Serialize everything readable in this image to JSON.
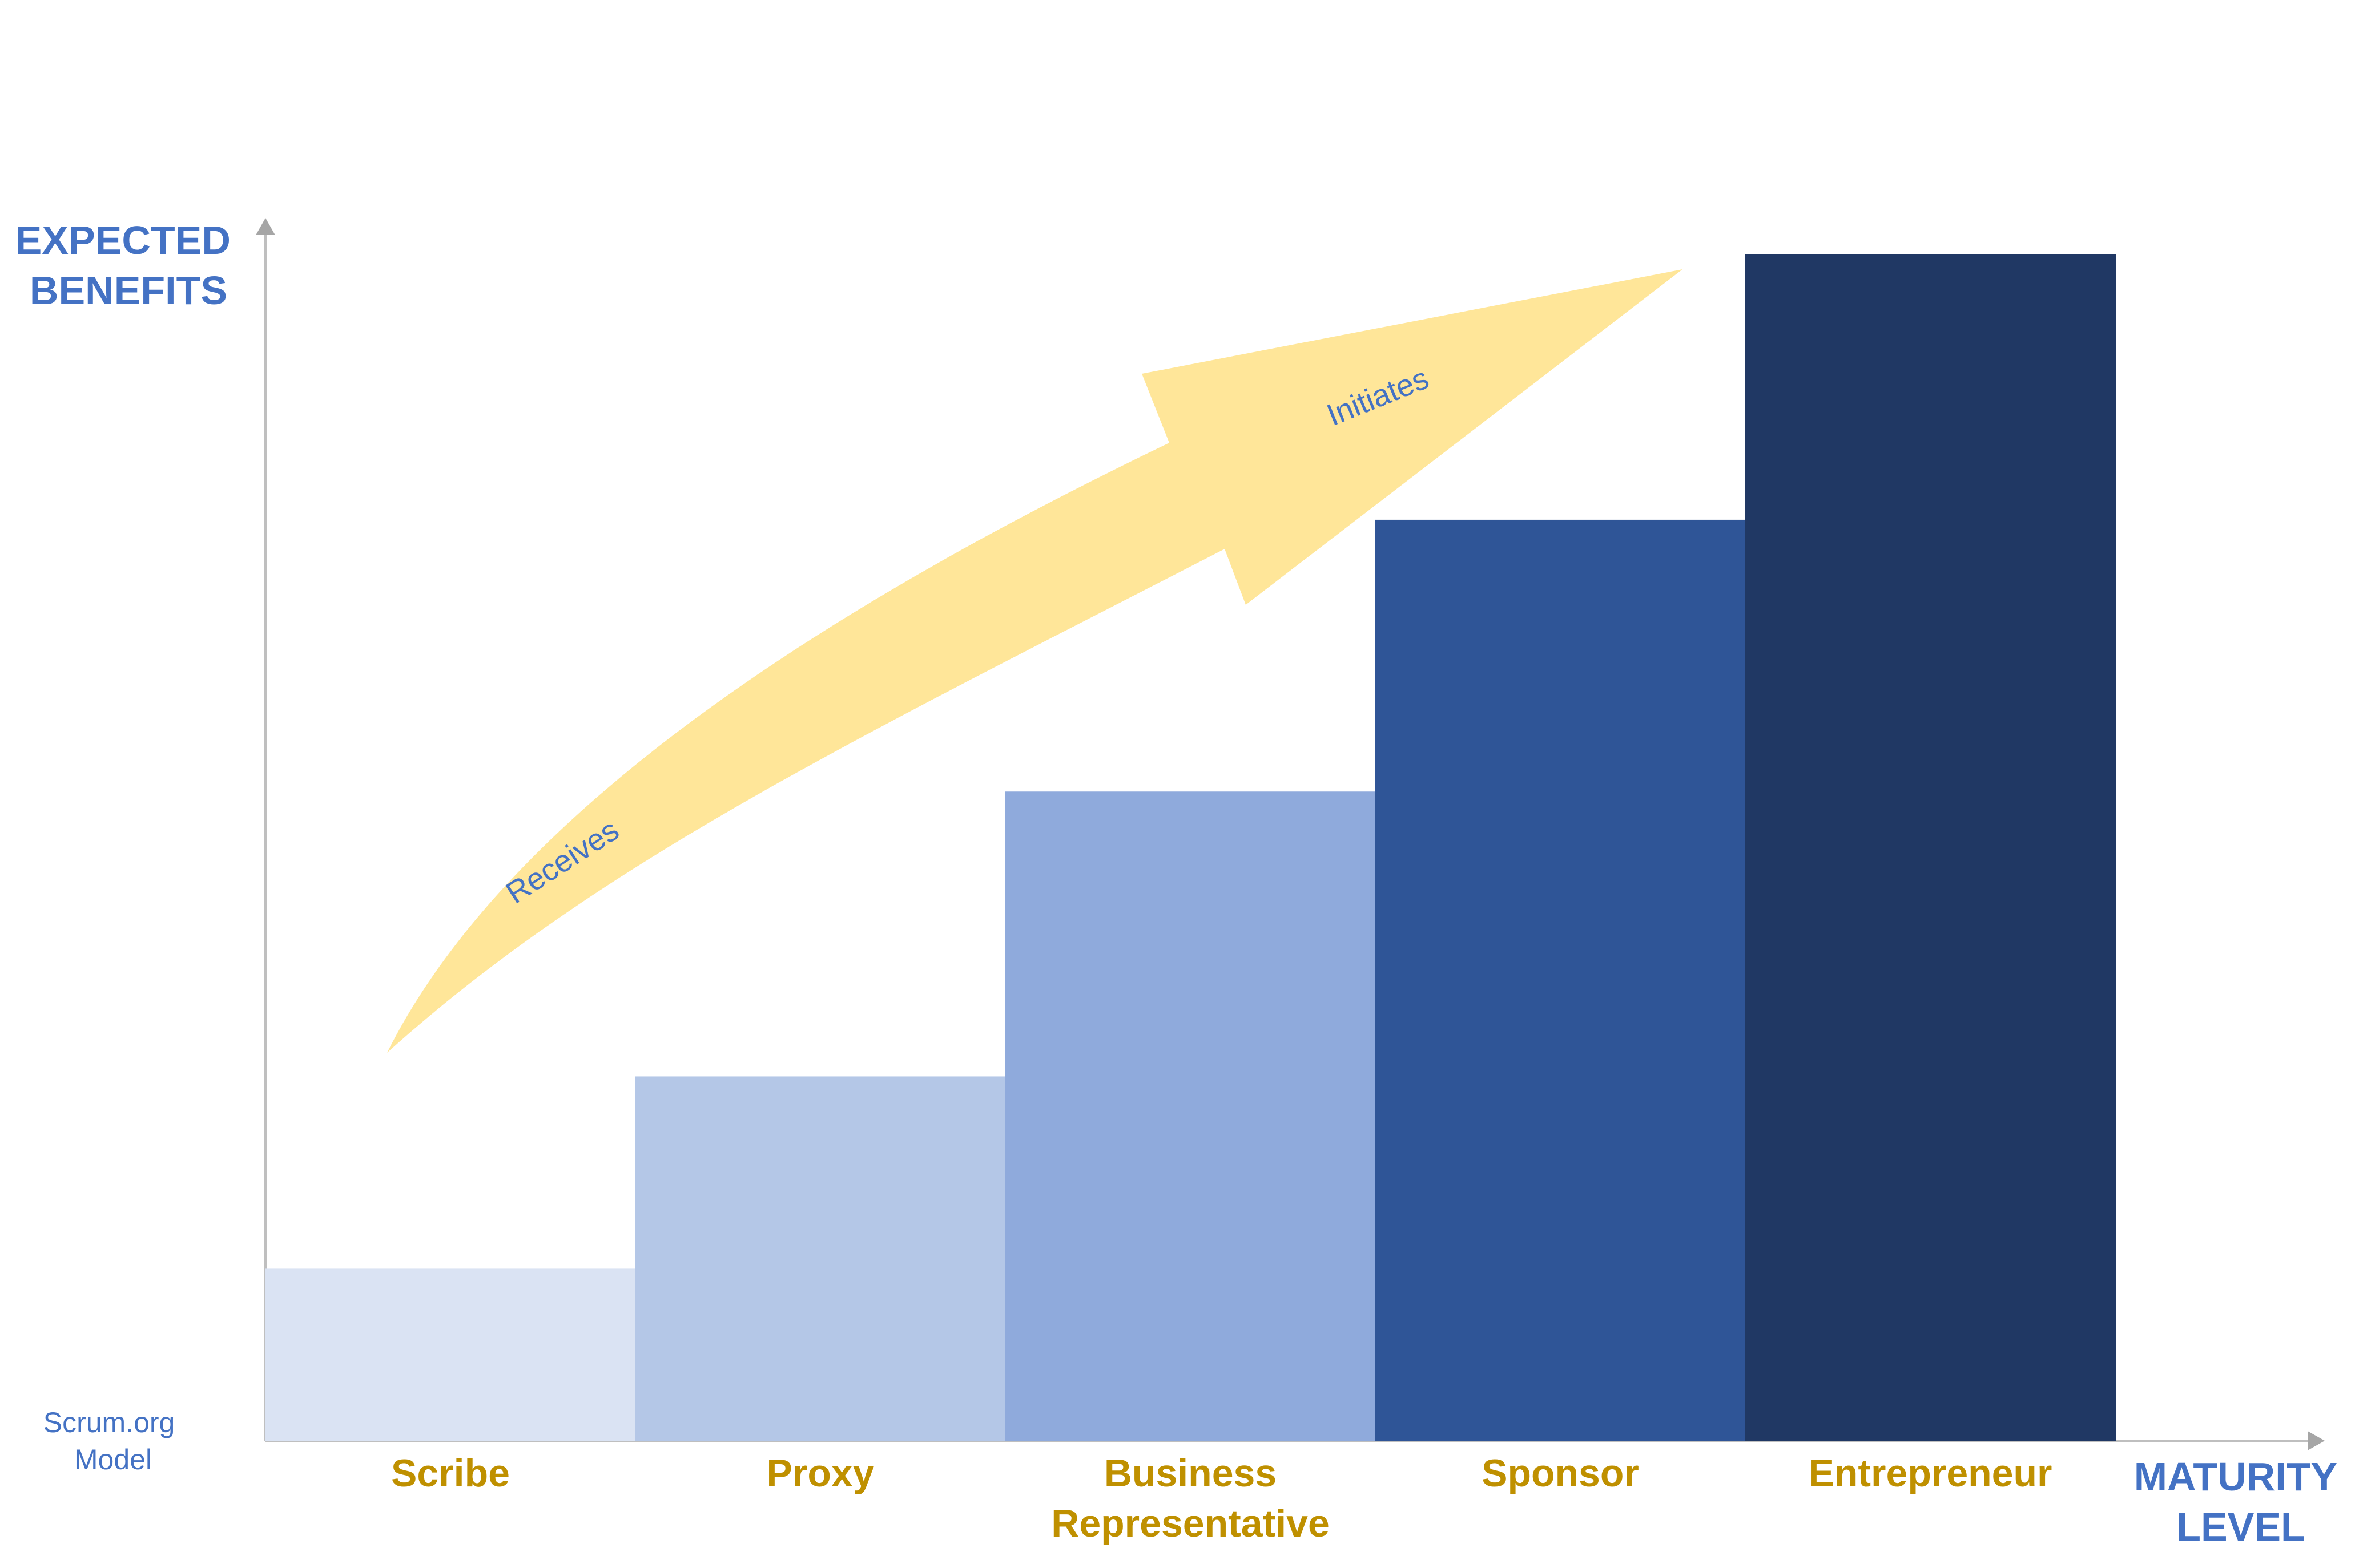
{
  "chart_data": {
    "type": "bar",
    "categories": [
      "Scribe",
      "Proxy",
      "Business Representative",
      "Sponsor",
      "Entrepreneur"
    ],
    "category_lines": [
      [
        "Scribe"
      ],
      [
        "Proxy"
      ],
      [
        "Business",
        "Representative"
      ],
      [
        "Sponsor"
      ],
      [
        "Entrepreneur"
      ]
    ],
    "values": [
      14.5,
      30.7,
      54.7,
      77.6,
      100
    ],
    "ylim": [
      0,
      100
    ],
    "ylabel": "EXPECTED BENEFITS",
    "ylabel_lines": [
      "EXPECTED",
      "BENEFITS"
    ],
    "xlabel": "MATURITY LEVEL",
    "xlabel_lines": [
      "MATURITY",
      "LEVEL"
    ],
    "grid": false,
    "legend": "none",
    "bar_colors": [
      "#dae3f3",
      "#b4c7e7",
      "#8faadc",
      "#2f5597",
      "#203864"
    ],
    "annotations": {
      "arrow_color": "#ffe699",
      "labels": [
        "Receives",
        "Initiates"
      ]
    }
  },
  "source_note": [
    "Scrum.org",
    "Model"
  ],
  "colors": {
    "axis_title": "#4472c4",
    "category_label": "#bf9000",
    "note": "#4472c4",
    "arrow_label": "#4472c4",
    "axis_line": "#bfbfbf"
  }
}
